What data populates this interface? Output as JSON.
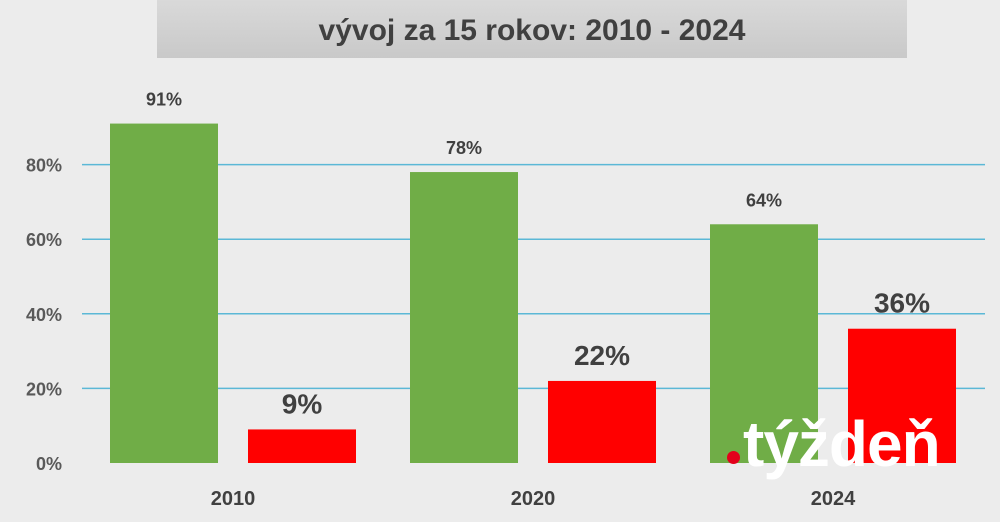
{
  "chart_data": {
    "type": "bar",
    "title_partial": "",
    "title": "vývoj za 15 rokov: 2010 - 2024",
    "categories": [
      "2010",
      "2020",
      "2024"
    ],
    "series": [
      {
        "values": [
          91,
          78,
          64
        ],
        "labels": [
          "91%",
          "78%",
          "64%"
        ],
        "color": "#70ad47"
      },
      {
        "values": [
          9,
          22,
          36
        ],
        "labels": [
          "9%",
          "22%",
          "36%"
        ],
        "color": "#ff0000"
      }
    ],
    "ylim": [
      0,
      100
    ],
    "yticks": [
      0,
      20,
      40,
      60,
      80
    ],
    "ytick_labels": [
      "0%",
      "20%",
      "40%",
      "60%",
      "80%"
    ],
    "grid": true,
    "gridline_color": "#5bb8d6",
    "xlabel": "",
    "ylabel": ""
  },
  "logo": {
    "text": "týždeň",
    "dot_color": "#e3001b"
  }
}
